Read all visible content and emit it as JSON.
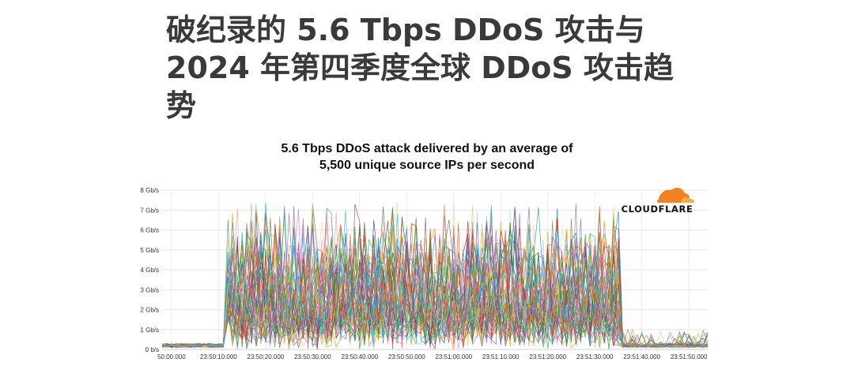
{
  "page": {
    "headline_lines": [
      "破纪录的 5.6 Tbps DDoS 攻击与",
      "2024 年第四季度全球 DDoS 攻击趋",
      "势"
    ]
  },
  "logo": {
    "name": "cloudflare-logo",
    "text": "CLOUDFLARE",
    "colors": {
      "cloud_dark": "#f48120",
      "cloud_light": "#faad3f"
    }
  },
  "chart_data": {
    "type": "line",
    "title_lines": [
      "5.6 Tbps DDoS attack delivered by an average of",
      "5,500 unique source IPs per second"
    ],
    "xlabel": "",
    "ylabel": "",
    "y_unit": "Gb/s",
    "ylim": [
      0,
      8
    ],
    "y_ticks": [
      "0 b/s",
      "1 Gb/s",
      "2 Gb/s",
      "3 Gb/s",
      "4 Gb/s",
      "5 Gb/s",
      "6 Gb/s",
      "7 Gb/s",
      "8 Gb/s"
    ],
    "x_ticks": [
      "50:00.000",
      "23:50:10.000",
      "23:50:20.000",
      "23:50:30.000",
      "23:50:40.000",
      "23:50:50.000",
      "23:51:00.000",
      "23:51:10.000",
      "23:51:20.000",
      "23:51:30.000",
      "23:51:40.000",
      "23:51:50.000"
    ],
    "x_range_seconds": [
      0,
      116
    ],
    "attack_window_seconds": [
      14,
      97
    ],
    "baseline_gbps": 0.2,
    "attack_typical_gbps": [
      1.5,
      4.5
    ],
    "attack_peak_gbps": 7.4,
    "grid": true,
    "legend": "none",
    "series_note_count": 60,
    "colors": [
      "#1f77b4",
      "#ff7f0e",
      "#2ca02c",
      "#d62728",
      "#9467bd",
      "#8c564b",
      "#e377c2",
      "#7f7f7f",
      "#bcbd22",
      "#17becf",
      "#393b79",
      "#637939",
      "#8c6d31",
      "#843c39",
      "#7b4173",
      "#3182bd",
      "#e6550d",
      "#31a354",
      "#756bb1",
      "#636363",
      "#c7e9c0",
      "#fdd0a2",
      "#a6cee3",
      "#b2df8a",
      "#fb9a99"
    ]
  }
}
